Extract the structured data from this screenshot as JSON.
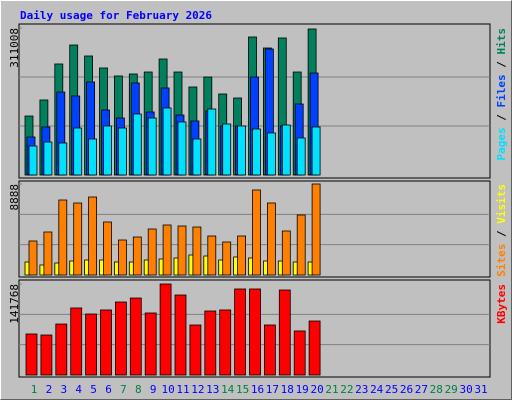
{
  "chart_data": {
    "type": "bar",
    "title": "Daily usage for February 2026",
    "categories": [
      "1",
      "2",
      "3",
      "4",
      "5",
      "6",
      "7",
      "8",
      "9",
      "10",
      "11",
      "12",
      "13",
      "14",
      "15",
      "16",
      "17",
      "18",
      "19",
      "20",
      "21",
      "22",
      "23",
      "24",
      "25",
      "26",
      "27",
      "28",
      "29",
      "30",
      "31"
    ],
    "category_colors": [
      "#008040",
      "#0000ff",
      "#0000ff",
      "#0000ff",
      "#0000ff",
      "#0000ff",
      "#008040",
      "#008040",
      "#0000ff",
      "#0000ff",
      "#0000ff",
      "#0000ff",
      "#0000ff",
      "#008040",
      "#008040",
      "#0000ff",
      "#0000ff",
      "#0000ff",
      "#0000ff",
      "#0000ff",
      "#008040",
      "#008040",
      "#0000ff",
      "#0000ff",
      "#0000ff",
      "#0000ff",
      "#0000ff",
      "#008040",
      "#008040",
      "#0000ff",
      "#0000ff"
    ],
    "separator": " / ",
    "grid_divisions": 3,
    "panels": [
      {
        "ylim": [
          0,
          311008
        ],
        "yticks": [
          311008
        ],
        "series": [
          {
            "name": "Hits",
            "color": "#00805c",
            "values": [
              124800,
              158700,
              234900,
              275000,
              251800,
              226400,
              209500,
              213700,
              217900,
              245400,
              217900,
              186200,
              207300,
              171400,
              162900,
              292000,
              268700,
              289900,
              217900,
              308900,
              null,
              null,
              null,
              null,
              null,
              null,
              null,
              null,
              null,
              null,
              null
            ]
          },
          {
            "name": "Files",
            "color": "#0040ff",
            "values": [
              80400,
              101600,
              175600,
              167200,
              196800,
              137500,
              120600,
              194700,
              133300,
              184100,
              126900,
              114300,
              135400,
              103700,
              103700,
              207300,
              266600,
              103700,
              150200,
              215800,
              null,
              null,
              null,
              null,
              null,
              null,
              null,
              null,
              null,
              null,
              null
            ]
          },
          {
            "name": "Pages",
            "color": "#00e0ff",
            "values": [
              61400,
              69800,
              67700,
              99400,
              76200,
              103700,
              99400,
              129100,
              120600,
              141800,
              112200,
              76200,
              139600,
              107900,
              103700,
              97300,
              88900,
              105800,
              78300,
              101600,
              null,
              null,
              null,
              null,
              null,
              null,
              null,
              null,
              null,
              null,
              null
            ]
          }
        ]
      },
      {
        "ylim": [
          0,
          8888
        ],
        "yticks": [
          8888
        ],
        "series": [
          {
            "name": "Visits",
            "color": "#ffff00",
            "values": [
              1270,
              977,
              1172,
              1367,
              1465,
              1465,
              1270,
              1270,
              1465,
              1563,
              1660,
              1953,
              1855,
              1465,
              1758,
              1660,
              1367,
              1367,
              1270,
              1270,
              null,
              null,
              null,
              null,
              null,
              null,
              null,
              null,
              null,
              null,
              null
            ]
          },
          {
            "name": "Sites",
            "color": "#ff8000",
            "values": [
              3321,
              4200,
              7325,
              7032,
              7618,
              5177,
              3418,
              3711,
              4493,
              4884,
              4786,
              4688,
              3809,
              3223,
              3809,
              8302,
              7032,
              4297,
              5860,
              8888,
              null,
              null,
              null,
              null,
              null,
              null,
              null,
              null,
              null,
              null,
              null
            ]
          }
        ]
      },
      {
        "ylim": [
          0,
          141768
        ],
        "yticks": [
          141768
        ],
        "series": [
          {
            "name": "KBytes",
            "color": "#ff0000",
            "values": [
              63900,
              62300,
              79400,
              104400,
              95000,
              101300,
              113700,
              119900,
              96600,
              141768,
              124600,
              77900,
              99700,
              101300,
              134000,
              134000,
              77900,
              132400,
              68600,
              84100,
              null,
              null,
              null,
              null,
              null,
              null,
              null,
              null,
              null,
              null,
              null
            ]
          }
        ]
      }
    ]
  }
}
